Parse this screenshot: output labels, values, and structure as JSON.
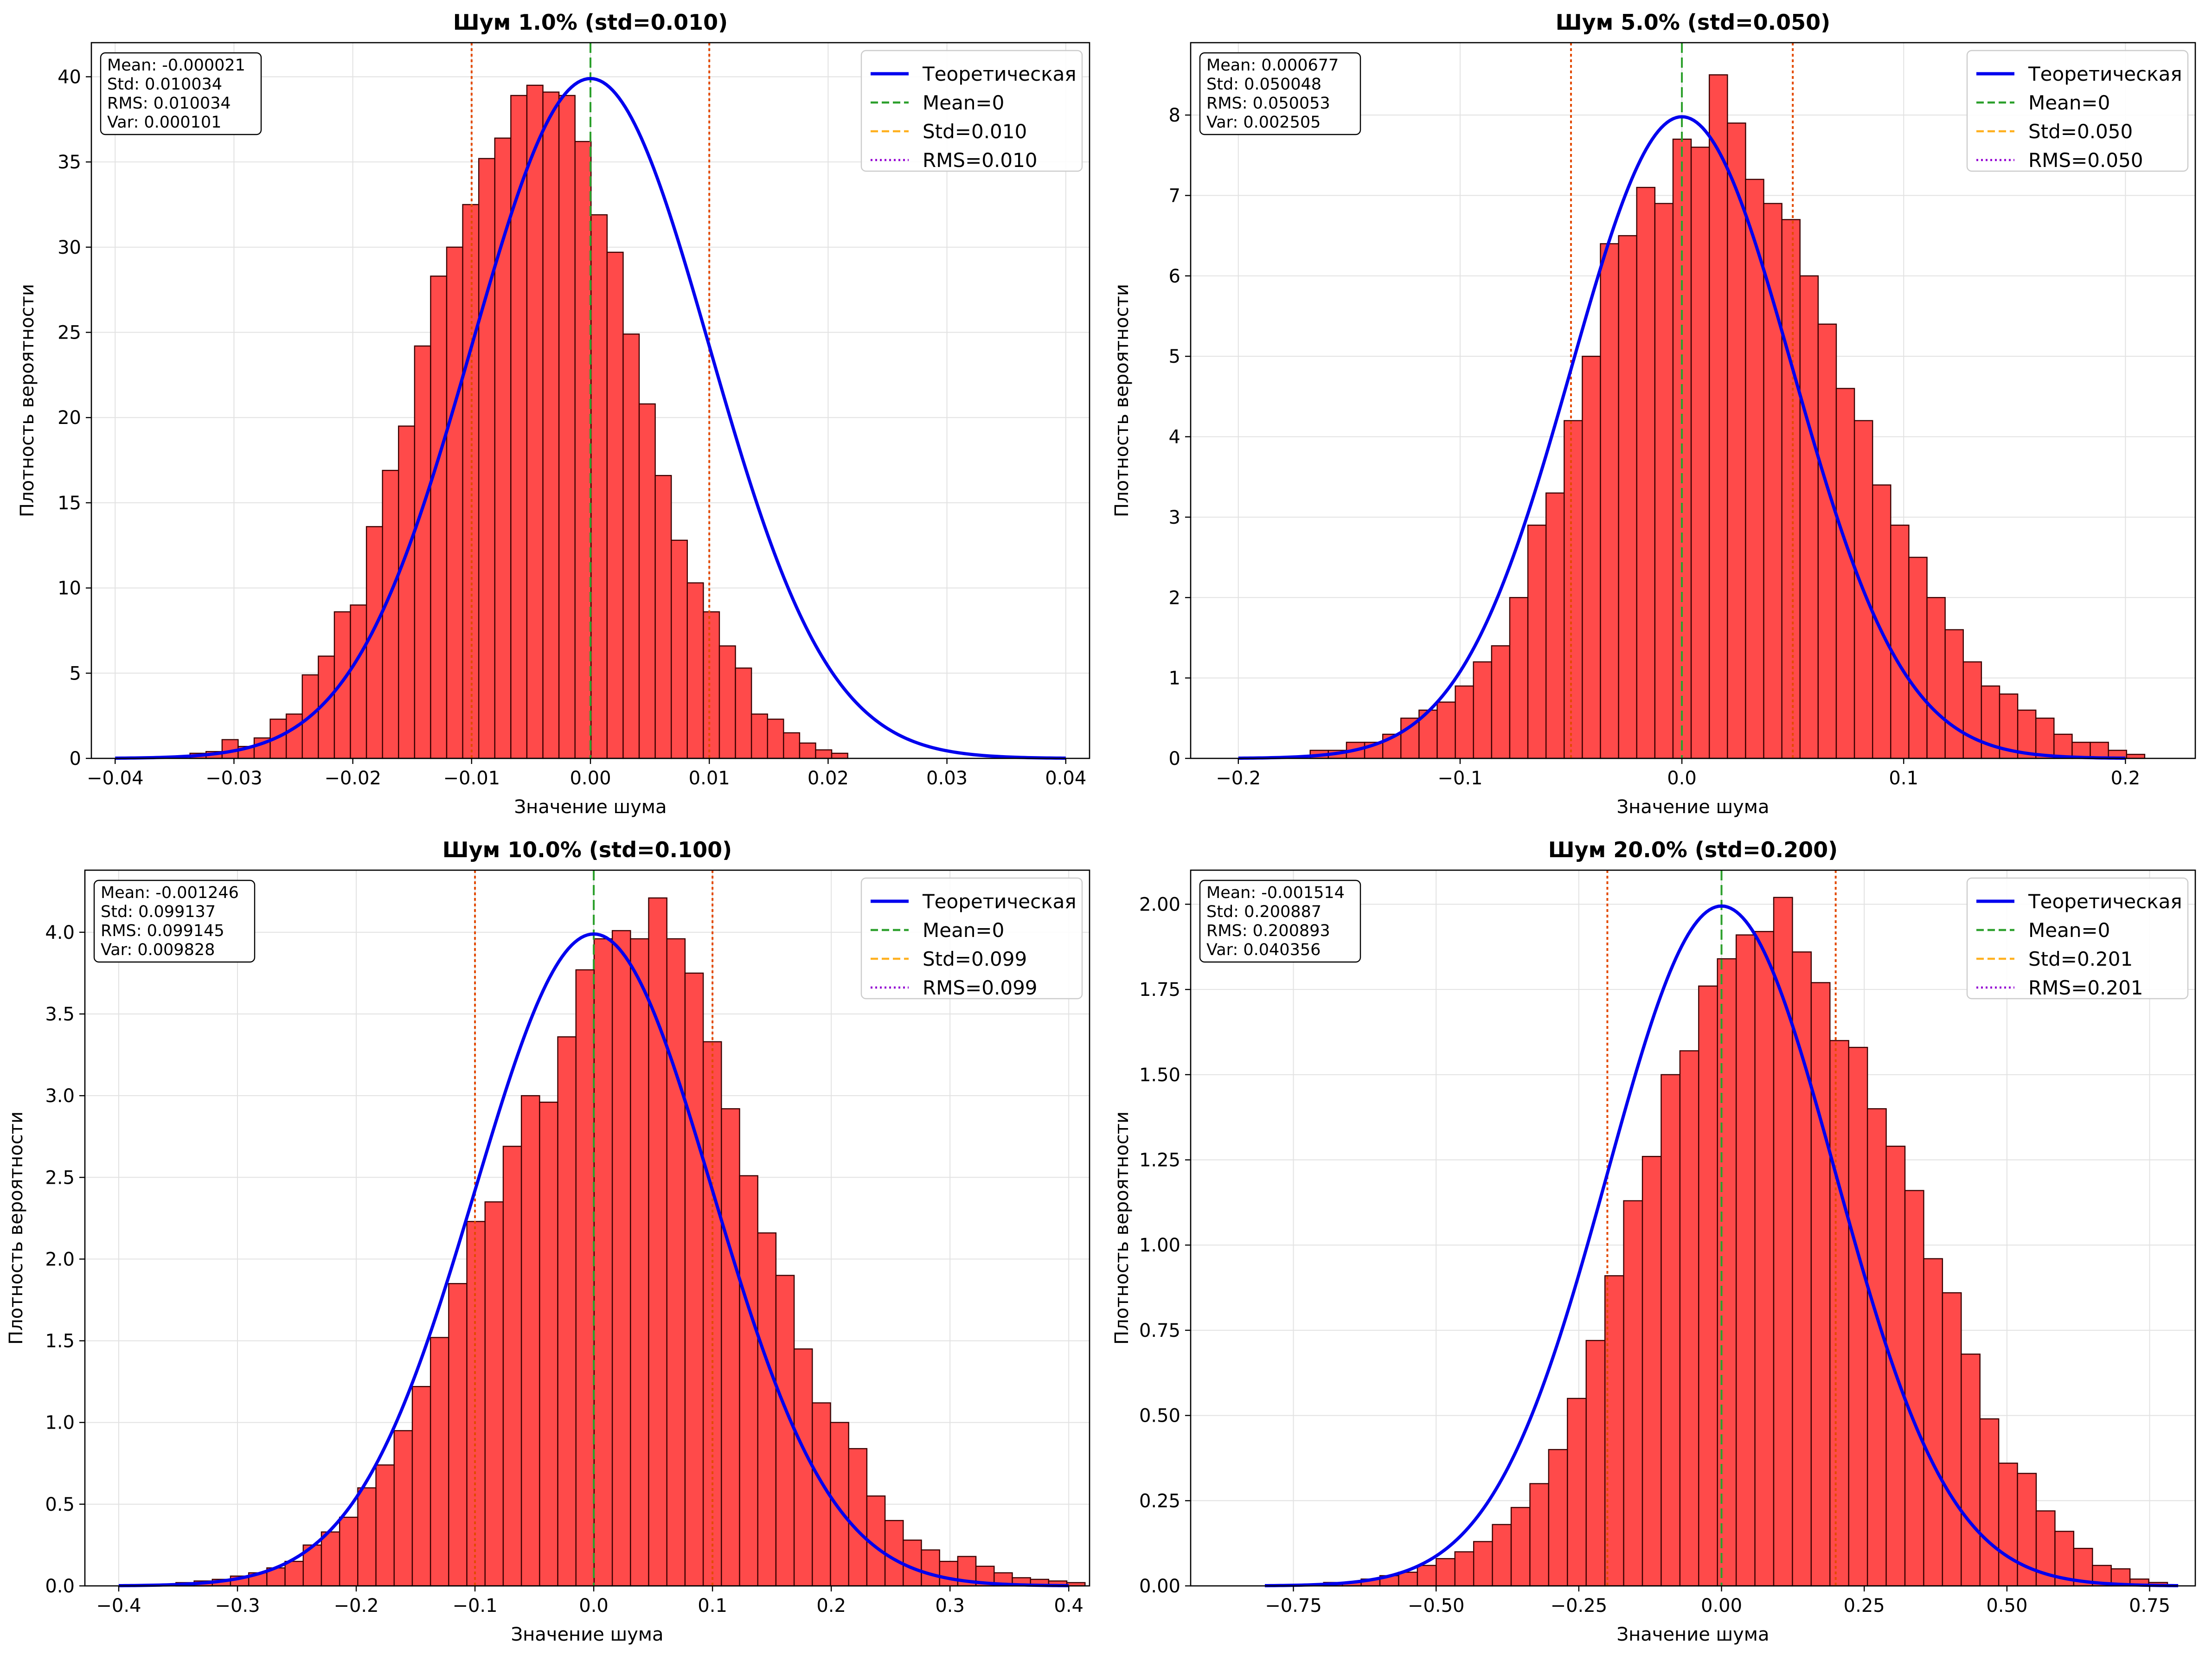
{
  "colors": {
    "bar_fill": "#ff4a4a",
    "bar_edge": "#3a0000",
    "theory": "#0000ee",
    "mean": "#2ca02c",
    "std": "#ffb01f",
    "rms": "#9400d3",
    "std_lines": "#e34a00",
    "grid": "#e2e2e2"
  },
  "chart_data": [
    {
      "type": "histogram",
      "title": "Шум 1.0% (std=0.010)",
      "xlabel": "Значение шума",
      "ylabel": "Плотность вероятности",
      "xlim": [
        -0.042,
        0.042
      ],
      "ylim": [
        0,
        42
      ],
      "xticks": [
        -0.04,
        -0.03,
        -0.02,
        -0.01,
        0.0,
        0.01,
        0.02,
        0.03,
        0.04
      ],
      "xtick_labels": [
        "−0.04",
        "−0.03",
        "−0.02",
        "−0.01",
        "0.00",
        "0.01",
        "0.02",
        "0.03",
        "0.04"
      ],
      "yticks": [
        0,
        5,
        10,
        15,
        20,
        25,
        30,
        35,
        40
      ],
      "ytick_labels": [
        "0",
        "5",
        "10",
        "15",
        "20",
        "25",
        "30",
        "35",
        "40"
      ],
      "grid": true,
      "legend_position": "top-right",
      "stats_text": [
        "Mean: -0.000021",
        "Std: 0.010034",
        "RMS: 0.010034",
        "Var: 0.000101"
      ],
      "legend": [
        "Теоретическая",
        "Mean=0",
        "Std=0.010",
        "RMS=0.010"
      ],
      "sigma": 0.01,
      "mean_line": 0,
      "std_value": 0.01,
      "bins_start": -0.0337,
      "bin_width": 0.00135,
      "values": [
        0.3,
        0.4,
        1.1,
        0.7,
        1.2,
        2.3,
        2.6,
        4.9,
        6.0,
        8.6,
        9.0,
        13.6,
        16.9,
        19.5,
        24.2,
        28.3,
        30.0,
        32.5,
        35.2,
        36.4,
        38.9,
        39.5,
        39.1,
        38.9,
        36.2,
        31.9,
        29.7,
        24.9,
        20.8,
        16.6,
        12.8,
        10.3,
        8.6,
        6.6,
        5.3,
        2.6,
        2.3,
        1.5,
        0.9,
        0.5,
        0.3
      ]
    },
    {
      "type": "histogram",
      "title": "Шум 5.0% (std=0.050)",
      "xlabel": "Значение шума",
      "ylabel": "Плотность вероятности",
      "xlim": [
        -0.2215,
        0.2315
      ],
      "ylim": [
        0,
        8.9
      ],
      "xticks": [
        -0.2,
        -0.1,
        0.0,
        0.1,
        0.2
      ],
      "xtick_labels": [
        "−0.2",
        "−0.1",
        "0.0",
        "0.1",
        "0.2"
      ],
      "yticks": [
        0,
        1,
        2,
        3,
        4,
        5,
        6,
        7,
        8
      ],
      "ytick_labels": [
        "0",
        "1",
        "2",
        "3",
        "4",
        "5",
        "6",
        "7",
        "8"
      ],
      "grid": true,
      "legend_position": "top-right",
      "stats_text": [
        "Mean: 0.000677",
        "Std: 0.050048",
        "RMS: 0.050053",
        "Var: 0.002505"
      ],
      "legend": [
        "Теоретическая",
        "Mean=0",
        "Std=0.050",
        "RMS=0.050"
      ],
      "sigma": 0.05,
      "mean_line": 0,
      "std_value": 0.05,
      "bins_start": -0.1676,
      "bin_width": 0.00818,
      "values": [
        0.1,
        0.1,
        0.2,
        0.2,
        0.3,
        0.5,
        0.6,
        0.7,
        0.9,
        1.2,
        1.4,
        2.0,
        2.9,
        3.3,
        4.2,
        5.0,
        6.4,
        6.5,
        7.1,
        6.9,
        7.7,
        7.6,
        8.5,
        7.9,
        7.2,
        6.9,
        6.7,
        6.0,
        5.4,
        4.6,
        4.2,
        3.4,
        2.9,
        2.5,
        2.0,
        1.6,
        1.2,
        0.9,
        0.8,
        0.6,
        0.5,
        0.3,
        0.2,
        0.2,
        0.1,
        0.05
      ]
    },
    {
      "type": "histogram",
      "title": "Шум 10.0% (std=0.100)",
      "xlabel": "Значение шума",
      "ylabel": "Плотность вероятности",
      "xlim": [
        -0.4285,
        0.4175
      ],
      "ylim": [
        0,
        4.38
      ],
      "xticks": [
        -0.4,
        -0.3,
        -0.2,
        -0.1,
        0.0,
        0.1,
        0.2,
        0.3,
        0.4
      ],
      "xtick_labels": [
        "−0.4",
        "−0.3",
        "−0.2",
        "−0.1",
        "0.0",
        "0.1",
        "0.2",
        "0.3",
        "0.4"
      ],
      "yticks": [
        0,
        0.5,
        1.0,
        1.5,
        2.0,
        2.5,
        3.0,
        3.5,
        4.0
      ],
      "ytick_labels": [
        "0.0",
        "0.5",
        "1.0",
        "1.5",
        "2.0",
        "2.5",
        "3.0",
        "3.5",
        "4.0"
      ],
      "grid": true,
      "legend_position": "top-right",
      "stats_text": [
        "Mean: -0.001246",
        "Std: 0.099137",
        "RMS: 0.099145",
        "Var: 0.009828"
      ],
      "legend": [
        "Теоретическая",
        "Mean=0",
        "Std=0.099",
        "RMS=0.099"
      ],
      "sigma": 0.1,
      "mean_line": 0,
      "std_value": 0.1,
      "bins_start": -0.3518,
      "bin_width": 0.01531,
      "values": [
        0.02,
        0.03,
        0.04,
        0.06,
        0.08,
        0.11,
        0.15,
        0.25,
        0.33,
        0.42,
        0.6,
        0.74,
        0.95,
        1.22,
        1.52,
        1.85,
        2.23,
        2.35,
        2.69,
        3.0,
        2.96,
        3.36,
        3.77,
        3.96,
        4.01,
        3.96,
        4.21,
        3.96,
        3.75,
        3.33,
        2.92,
        2.51,
        2.16,
        1.9,
        1.45,
        1.12,
        1.0,
        0.84,
        0.55,
        0.4,
        0.28,
        0.22,
        0.15,
        0.18,
        0.12,
        0.08,
        0.05,
        0.04,
        0.03,
        0.02
      ]
    },
    {
      "type": "histogram",
      "title": "Шум 20.0% (std=0.200)",
      "xlabel": "Значение шума",
      "ylabel": "Плотность вероятности",
      "xlim": [
        -0.93,
        0.83
      ],
      "ylim": [
        0,
        2.1
      ],
      "xticks": [
        -0.75,
        -0.5,
        -0.25,
        0.0,
        0.25,
        0.5,
        0.75
      ],
      "xtick_labels": [
        "−0.75",
        "−0.50",
        "−0.25",
        "0.00",
        "0.25",
        "0.50",
        "0.75"
      ],
      "yticks": [
        0,
        0.25,
        0.5,
        0.75,
        1.0,
        1.25,
        1.5,
        1.75,
        2.0
      ],
      "ytick_labels": [
        "0.00",
        "0.25",
        "0.50",
        "0.75",
        "1.00",
        "1.25",
        "1.50",
        "1.75",
        "2.00"
      ],
      "grid": true,
      "legend_position": "top-right",
      "stats_text": [
        "Mean: -0.001514",
        "Std: 0.200887",
        "RMS: 0.200893",
        "Var: 0.040356"
      ],
      "legend": [
        "Теоретическая",
        "Mean=0",
        "Std=0.201",
        "RMS=0.201"
      ],
      "sigma": 0.2,
      "mean_line": 0,
      "std_value": 0.2,
      "bins_start": -0.697,
      "bin_width": 0.03285,
      "values": [
        0.01,
        0.01,
        0.02,
        0.03,
        0.04,
        0.06,
        0.08,
        0.1,
        0.13,
        0.18,
        0.23,
        0.3,
        0.4,
        0.55,
        0.72,
        0.91,
        1.13,
        1.26,
        1.5,
        1.57,
        1.76,
        1.84,
        1.91,
        1.92,
        2.02,
        1.86,
        1.77,
        1.6,
        1.58,
        1.4,
        1.29,
        1.16,
        0.96,
        0.86,
        0.68,
        0.49,
        0.36,
        0.33,
        0.22,
        0.16,
        0.11,
        0.06,
        0.05,
        0.02,
        0.01
      ]
    }
  ]
}
